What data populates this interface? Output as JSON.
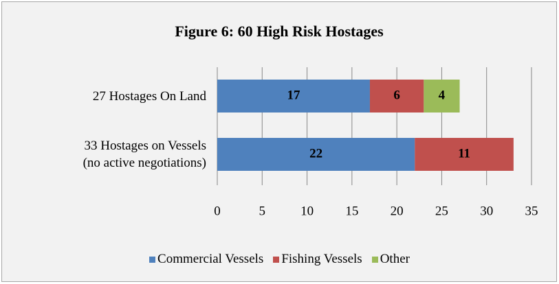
{
  "chart_data": {
    "type": "stacked-bar-horizontal",
    "title": "Figure 6: 60 High Risk Hostages",
    "categories": [
      "27 Hostages On Land",
      "33 Hostages on Vessels\n(no active negotiations)"
    ],
    "series": [
      {
        "name": "Commercial Vessels",
        "color": "#4f81bd",
        "values": [
          17,
          22
        ]
      },
      {
        "name": "Fishing Vessels",
        "color": "#c0504d",
        "values": [
          6,
          11
        ]
      },
      {
        "name": "Other",
        "color": "#9bbb59",
        "values": [
          4,
          null
        ]
      }
    ],
    "xlim": [
      0,
      35
    ],
    "xticks": [
      0,
      5,
      10,
      15,
      20,
      25,
      30,
      35
    ],
    "grid": true,
    "legend": "bottom"
  }
}
